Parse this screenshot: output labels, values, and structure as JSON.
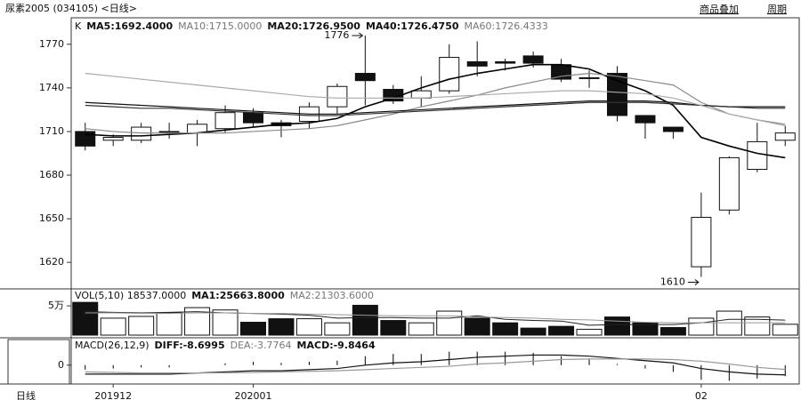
{
  "header": {
    "title": "尿素2005 (034105) <日线>",
    "links": [
      "商品叠加",
      "周期"
    ]
  },
  "footer": {
    "period": "日线"
  },
  "chart_data": [
    {
      "type": "candlestick",
      "label": "K",
      "categories": [
        null,
        "201912",
        null,
        null,
        null,
        null,
        "202001",
        null,
        null,
        null,
        null,
        null,
        null,
        null,
        null,
        null,
        null,
        null,
        null,
        null,
        null,
        null,
        "02",
        null,
        null,
        null
      ],
      "open": [
        1710,
        1704,
        1704,
        1710,
        1709,
        1712,
        1723,
        1716,
        1717,
        1727,
        1750,
        1739,
        1733,
        1738,
        1758,
        1758,
        1762,
        1756,
        1747,
        1750,
        1721,
        1713,
        1617,
        1656,
        1684,
        1704
      ],
      "high": [
        1716,
        1708,
        1716,
        1716,
        1718,
        1728,
        1726,
        1718,
        1730,
        1743,
        1776,
        1742,
        1748,
        1770,
        1772,
        1760,
        1765,
        1760,
        1752,
        1755,
        1721,
        1713,
        1668,
        1693,
        1716,
        1714
      ],
      "low": [
        1697,
        1700,
        1702,
        1705,
        1700,
        1709,
        1713,
        1706,
        1712,
        1722,
        1728,
        1729,
        1727,
        1736,
        1748,
        1752,
        1754,
        1744,
        1740,
        1717,
        1705,
        1705,
        1610,
        1653,
        1682,
        1700
      ],
      "close": [
        1700,
        1706,
        1713,
        1710,
        1715,
        1723,
        1716,
        1714,
        1727,
        1741,
        1745,
        1731,
        1738,
        1761,
        1755,
        1757,
        1757,
        1746,
        1747,
        1721,
        1716,
        1710,
        1651,
        1692,
        1703,
        1709
      ],
      "series": [
        {
          "name": "MA5:1692.4000",
          "color": "#000000",
          "values": [
            1708,
            1707,
            1707,
            1708,
            1709,
            1711,
            1713,
            1715,
            1716,
            1719,
            1727,
            1733,
            1740,
            1746,
            1750,
            1753,
            1756,
            1756,
            1753,
            1745,
            1738,
            1728,
            1706,
            1700,
            1695,
            1692
          ]
        },
        {
          "name": "MA10:1715.0000",
          "color": "#888888",
          "values": [
            1712,
            1710,
            1709,
            1709,
            1709,
            1709,
            1710,
            1711,
            1712,
            1714,
            1718,
            1722,
            1727,
            1731,
            1735,
            1740,
            1744,
            1748,
            1750,
            1748,
            1745,
            1742,
            1730,
            1722,
            1718,
            1715
          ]
        },
        {
          "name": "MA20:1726.9500",
          "color": "#111111",
          "values": [
            1730,
            1729,
            1728,
            1727,
            1726,
            1725,
            1724,
            1723,
            1722,
            1722,
            1723,
            1724,
            1725,
            1726,
            1727,
            1728,
            1729,
            1730,
            1731,
            1731,
            1731,
            1730,
            1728,
            1727,
            1727,
            1727
          ]
        },
        {
          "name": "MA40:1726.4750",
          "color": "#333333",
          "values": [
            1728,
            1727,
            1726,
            1726,
            1725,
            1724,
            1723,
            1722,
            1721,
            1721,
            1722,
            1723,
            1724,
            1725,
            1726,
            1727,
            1728,
            1729,
            1730,
            1730,
            1730,
            1729,
            1728,
            1727,
            1726,
            1726
          ]
        },
        {
          "name": "MA60:1726.4333",
          "color": "#aaaaaa",
          "values": [
            1750,
            1748,
            1746,
            1744,
            1742,
            1740,
            1738,
            1736,
            1734,
            1733,
            1733,
            1733,
            1733,
            1734,
            1735,
            1736,
            1737,
            1738,
            1738,
            1737,
            1736,
            1733,
            1728,
            1722,
            1718,
            1714
          ]
        }
      ],
      "ylim": [
        1603,
        1787
      ],
      "yticks": [
        1620,
        1650,
        1680,
        1710,
        1740,
        1770
      ],
      "annotations": [
        "1776",
        "1610"
      ]
    },
    {
      "type": "bar",
      "label": "VOL(5,10)",
      "current": "18537.0000",
      "values": [
        56000,
        29000,
        32000,
        38000,
        47000,
        43000,
        22000,
        28000,
        28000,
        21000,
        51000,
        25000,
        21000,
        41000,
        29000,
        21000,
        12000,
        15000,
        10000,
        31000,
        21000,
        13000,
        29000,
        41000,
        31000,
        18537
      ],
      "series": [
        {
          "name": "MA1:25663.8000",
          "color": "#222222",
          "values": [
            40000,
            39000,
            38000,
            39000,
            40000,
            38000,
            37000,
            36000,
            34000,
            29000,
            30000,
            30000,
            29000,
            29000,
            33000,
            27000,
            25000,
            24000,
            17000,
            18000,
            18000,
            18000,
            21000,
            27000,
            27000,
            25664
          ]
        },
        {
          "name": "MA2:21303.6000",
          "color": "#999999",
          "values": [
            38000,
            38000,
            37000,
            37000,
            38000,
            38000,
            37000,
            37000,
            36000,
            35000,
            34000,
            33000,
            33000,
            33000,
            31000,
            30000,
            29000,
            27000,
            26000,
            24000,
            22000,
            21000,
            21000,
            21000,
            21000,
            21304
          ]
        }
      ],
      "ylim": [
        0,
        76000
      ],
      "yticks": [
        {
          "value": 50000,
          "label": "5万"
        }
      ]
    },
    {
      "type": "macd",
      "label": "MACD(26,12,9)",
      "series": [
        {
          "name": "DIFF:-8.6995",
          "color": "#111111",
          "values": [
            -8,
            -8,
            -8,
            -8,
            -7,
            -6,
            -5,
            -5,
            -4,
            -3,
            0,
            2,
            3,
            5,
            7,
            8,
            9,
            9,
            8,
            6,
            4,
            2,
            -3,
            -6,
            -8,
            -8.7
          ]
        },
        {
          "name": "DEA:-3.7764",
          "color": "#999999",
          "values": [
            -6,
            -6.5,
            -7,
            -7,
            -7,
            -6.8,
            -6.5,
            -6,
            -5.5,
            -5,
            -4,
            -3,
            -2,
            -1,
            1,
            2,
            3.5,
            5,
            5.5,
            5.5,
            5.5,
            5,
            3.5,
            1,
            -2,
            -3.8
          ]
        }
      ],
      "bars": {
        "name": "MACD:-9.8464",
        "color": "#000000",
        "values": [
          -4,
          -3,
          -2,
          -2,
          0,
          1.6,
          3,
          2,
          3,
          4,
          8,
          10,
          10,
          12,
          12,
          12,
          11,
          8,
          5,
          1,
          -3,
          -6,
          -13,
          -14,
          -12,
          -9.8
        ]
      },
      "ylim": [
        -16,
        22
      ],
      "yticks": [
        0
      ]
    }
  ]
}
